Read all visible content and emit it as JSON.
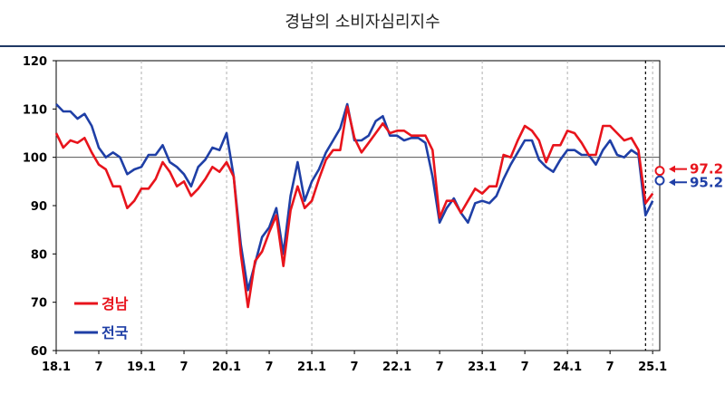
{
  "header": {
    "title": "경남의  소비자심리지수"
  },
  "colors": {
    "gyeongnam": "#e8141c",
    "national": "#1f3fa6",
    "rule": "#1f3864"
  },
  "chart_data": {
    "type": "line",
    "title": "경남의  소비자심리지수",
    "xlabel": "",
    "ylabel": "",
    "ylim": [
      60,
      120
    ],
    "yticks": [
      60,
      70,
      80,
      90,
      100,
      110,
      120
    ],
    "reference_line": 100,
    "xticks": [
      {
        "i": 0,
        "label": "18.1"
      },
      {
        "i": 6,
        "label": "7"
      },
      {
        "i": 12,
        "label": "19.1"
      },
      {
        "i": 18,
        "label": "7"
      },
      {
        "i": 24,
        "label": "20.1"
      },
      {
        "i": 30,
        "label": "7"
      },
      {
        "i": 36,
        "label": "21.1"
      },
      {
        "i": 42,
        "label": "7"
      },
      {
        "i": 48,
        "label": "22.1"
      },
      {
        "i": 54,
        "label": "7"
      },
      {
        "i": 60,
        "label": "23.1"
      },
      {
        "i": 66,
        "label": "7"
      },
      {
        "i": 72,
        "label": "24.1"
      },
      {
        "i": 78,
        "label": "7"
      },
      {
        "i": 84,
        "label": "25.1"
      }
    ],
    "grid": "vertical dashed at January",
    "legend": "bottom-left",
    "series": [
      {
        "name": "경남",
        "color": "#e8141c",
        "end_label": "97.2",
        "values": [
          105,
          102,
          103.5,
          103,
          104,
          101,
          98.5,
          97.5,
          94,
          94,
          89.5,
          91,
          93.5,
          93.5,
          95.5,
          99,
          97,
          94,
          95,
          92,
          93.5,
          95.5,
          98,
          97,
          99,
          96,
          80,
          69,
          78.5,
          80.5,
          84.5,
          88,
          77.5,
          89,
          94,
          89.5,
          91,
          95.5,
          99.5,
          101.5,
          101.5,
          110.5,
          104,
          101,
          103,
          105,
          107,
          105,
          105.5,
          105.5,
          104.5,
          104.5,
          104.5,
          101.5,
          87.5,
          91,
          91,
          88.5,
          91,
          93.5,
          92.5,
          94,
          94,
          100.5,
          100,
          103.5,
          106.5,
          105.5,
          103.5,
          99,
          102.5,
          102.5,
          105.5,
          105,
          103,
          100.5,
          100.5,
          106.5,
          106.5,
          105,
          103.5,
          104,
          101.5,
          90.5,
          92.5,
          97.2
        ]
      },
      {
        "name": "전국",
        "color": "#1f3fa6",
        "end_label": "95.2",
        "values": [
          111,
          109.5,
          109.5,
          108,
          109,
          106.5,
          102,
          100,
          101,
          100,
          96.5,
          97.5,
          98,
          100.5,
          100.5,
          102.5,
          99,
          98,
          96.5,
          94,
          98,
          99.5,
          102,
          101.5,
          105,
          96,
          82,
          72.5,
          78,
          83.5,
          85.5,
          89.5,
          80,
          92,
          99,
          91,
          95,
          97.5,
          101,
          103.5,
          106,
          111,
          103.5,
          103.5,
          104.5,
          107.5,
          108.5,
          104.5,
          104.5,
          103.5,
          104,
          104,
          103,
          96,
          86.5,
          89.5,
          91.5,
          88.5,
          86.5,
          90.5,
          91,
          90.5,
          92,
          95.5,
          98.5,
          101,
          103.5,
          103.5,
          99.5,
          98,
          97,
          99.5,
          101.5,
          101.5,
          100.5,
          100.5,
          98.5,
          101.5,
          103.5,
          100.5,
          100,
          101.5,
          100.5,
          88,
          91,
          95.2
        ]
      }
    ]
  }
}
